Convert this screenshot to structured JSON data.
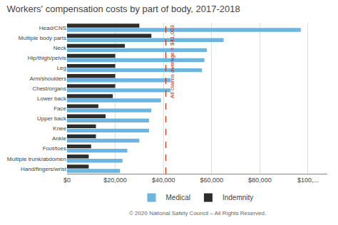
{
  "chart_data": {
    "type": "bar",
    "orientation": "horizontal",
    "title": "Workers' compensation costs by part of body, 2017-2018",
    "categories": [
      "Head/CNS",
      "Multiple body parts",
      "Neck",
      "Hip/thigh/pelvis",
      "Leg",
      "Arm/shoulders",
      "Chest/organs",
      "Lower back",
      "Face",
      "Upper back",
      "Knee",
      "Ankle",
      "Foot/toes",
      "Multiple trunk/abdomen",
      "Hand/fingers/wrist"
    ],
    "series": [
      {
        "name": "Indemnity",
        "color": "#2d2d2d",
        "values": [
          30000,
          35000,
          24000,
          20000,
          20000,
          20000,
          20000,
          19000,
          13000,
          16000,
          12000,
          12000,
          10000,
          9000,
          9000
        ]
      },
      {
        "name": "Medical",
        "color": "#6bb5e0",
        "values": [
          97000,
          65000,
          58000,
          57000,
          56000,
          43000,
          43000,
          39000,
          35000,
          34000,
          34000,
          30000,
          25000,
          23000,
          22000
        ]
      }
    ],
    "xlim": [
      0,
      108000
    ],
    "xticks": [
      {
        "value": 0,
        "label": "$0"
      },
      {
        "value": 20000,
        "label": "$20,000"
      },
      {
        "value": 40000,
        "label": "$40,000"
      },
      {
        "value": 60000,
        "label": "$60,000"
      },
      {
        "value": 80000,
        "label": "$80,000"
      },
      {
        "value": 100000,
        "label": "$100,..."
      }
    ],
    "grid": true,
    "legend": "bottom",
    "annotations": [
      {
        "text": "All claims average = $41,003",
        "x": 41003,
        "color": "#cc2200",
        "line_style": "dashed"
      },
      {
        "text": "© 2020 National Safety Council – All Rights Reserved."
      }
    ]
  }
}
